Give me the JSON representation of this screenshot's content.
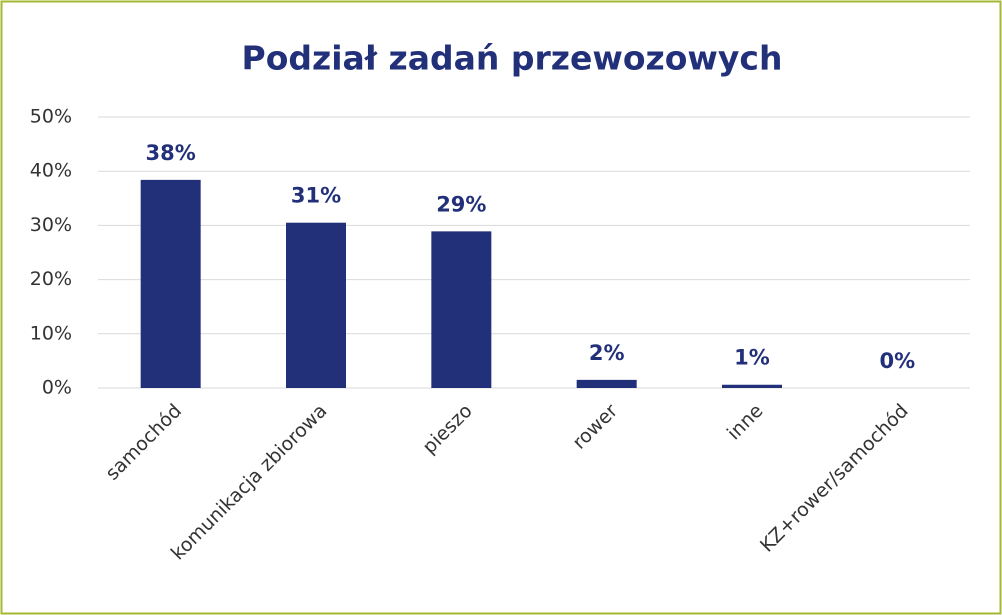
{
  "chart_data": {
    "type": "bar",
    "title": "Podział zadań przewozowych",
    "categories": [
      "samochód",
      "komunikacja zbiorowa",
      "pieszo",
      "rower",
      "inne",
      "KZ+rower/samochód"
    ],
    "values": [
      38.4,
      30.5,
      28.9,
      1.5,
      0.6,
      0
    ],
    "value_labels": [
      "38%",
      "31%",
      "29%",
      "2%",
      "1%",
      "0%"
    ],
    "color": "#22307a",
    "ylim": [
      0,
      50
    ],
    "yticks": [
      {
        "value": 0,
        "label": "0%"
      },
      {
        "value": 10,
        "label": "10%"
      },
      {
        "value": 20,
        "label": "20%"
      },
      {
        "value": 30,
        "label": "30%"
      },
      {
        "value": 40,
        "label": "40%"
      },
      {
        "value": 50,
        "label": "50%"
      }
    ],
    "grid": true
  }
}
